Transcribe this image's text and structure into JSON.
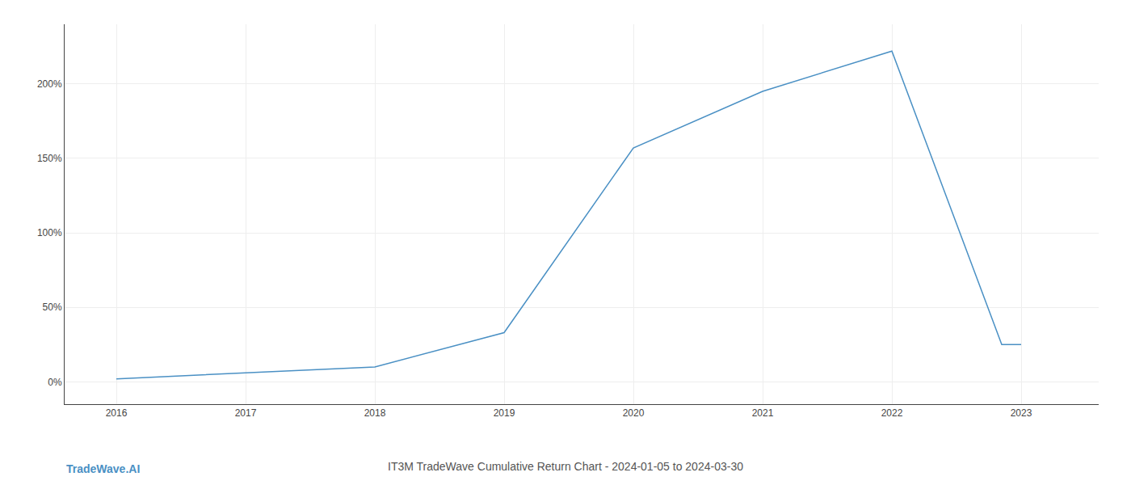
{
  "chart_data": {
    "type": "line",
    "title": "IT3M TradeWave Cumulative Return Chart - 2024-01-05 to 2024-03-30",
    "annotations": [
      "TradeWave.AI"
    ],
    "x": [
      2016,
      2017,
      2018,
      2019,
      2020,
      2021,
      2022,
      2022.85,
      2023.0
    ],
    "values": [
      2,
      6,
      10,
      33,
      157,
      195,
      222,
      25,
      25
    ],
    "color": "#4a90c4",
    "xlim": [
      2015.6,
      2023.6
    ],
    "xticks": [
      2016,
      2017,
      2018,
      2019,
      2020,
      2021,
      2022,
      2023
    ],
    "ylim": [
      -15,
      240
    ],
    "yticks": [
      {
        "value": 0,
        "label": "0%"
      },
      {
        "value": 50,
        "label": "50%"
      },
      {
        "value": 100,
        "label": "100%"
      },
      {
        "value": 150,
        "label": "150%"
      },
      {
        "value": 200,
        "label": "200%"
      }
    ],
    "grid": true
  }
}
